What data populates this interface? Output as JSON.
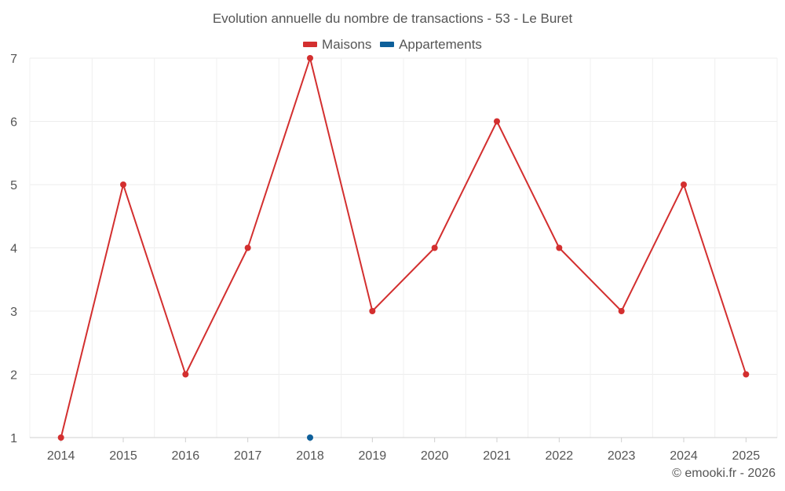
{
  "chart_data": {
    "type": "line",
    "title": "Evolution annuelle du nombre de transactions - 53 - Le Buret",
    "categories": [
      "2014",
      "2015",
      "2016",
      "2017",
      "2018",
      "2019",
      "2020",
      "2021",
      "2022",
      "2023",
      "2024",
      "2025"
    ],
    "series": [
      {
        "name": "Maisons",
        "color": "#d32f2f",
        "values": [
          1,
          5,
          2,
          4,
          7,
          3,
          4,
          6,
          4,
          3,
          5,
          2
        ]
      },
      {
        "name": "Appartements",
        "color": "#0d5f9a",
        "values": [
          null,
          null,
          null,
          null,
          1,
          null,
          null,
          null,
          null,
          null,
          null,
          null
        ]
      }
    ],
    "ylim": [
      1,
      7
    ],
    "yticks": [
      "1",
      "2",
      "3",
      "4",
      "5",
      "6",
      "7"
    ],
    "xlabel": "",
    "ylabel": "",
    "grid": true,
    "legend": "top-center"
  },
  "credit": "© emooki.fr - 2026"
}
